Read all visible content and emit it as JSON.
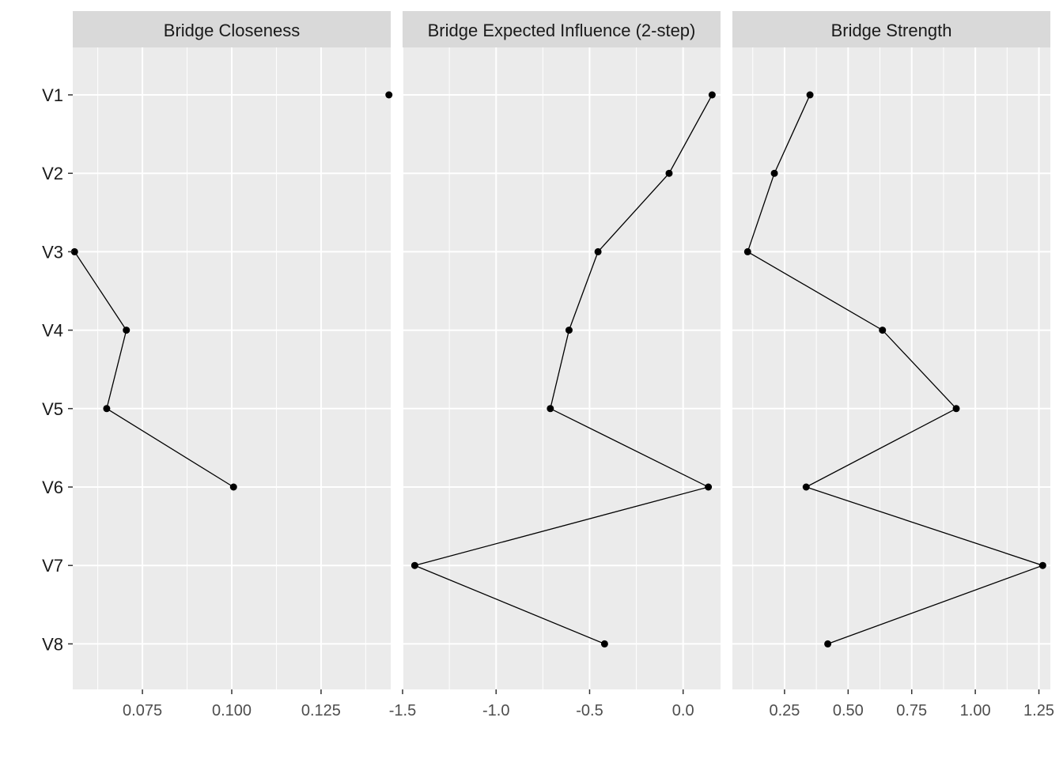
{
  "chart_data": {
    "type": "line",
    "categories": [
      "V1",
      "V2",
      "V3",
      "V4",
      "V5",
      "V6",
      "V7",
      "V8"
    ],
    "panel_background": "#ebebeb",
    "strip_background": "#d9d9d9",
    "grid_color": "#ffffff",
    "line_color": "#000000",
    "grid": true,
    "panels": [
      {
        "title": "Bridge Closeness",
        "values": [
          0.144,
          null,
          0.056,
          0.0705,
          0.065,
          0.1005,
          null,
          null
        ],
        "xlim": [
          0.0555,
          0.1445
        ],
        "ticks": [
          0.075,
          0.1,
          0.125
        ],
        "tick_labels": [
          "0.075",
          "0.100",
          "0.125"
        ]
      },
      {
        "title": "Bridge Expected Influence (2-step)",
        "values": [
          0.155,
          -0.075,
          -0.455,
          -0.61,
          -0.71,
          0.135,
          -1.435,
          -0.42
        ],
        "xlim": [
          -1.5,
          0.2
        ],
        "ticks": [
          -1.5,
          -1.0,
          -0.5,
          0.0
        ],
        "tick_labels": [
          "-1.5",
          "-1.0",
          "-0.5",
          "0.0"
        ]
      },
      {
        "title": "Bridge Strength",
        "values": [
          0.35,
          0.21,
          0.105,
          0.635,
          0.925,
          0.335,
          1.265,
          0.42
        ],
        "xlim": [
          0.045,
          1.295
        ],
        "ticks": [
          0.25,
          0.5,
          0.75,
          1.0,
          1.25
        ],
        "tick_labels": [
          "0.25",
          "0.50",
          "0.75",
          "1.00",
          "1.25"
        ]
      }
    ]
  }
}
